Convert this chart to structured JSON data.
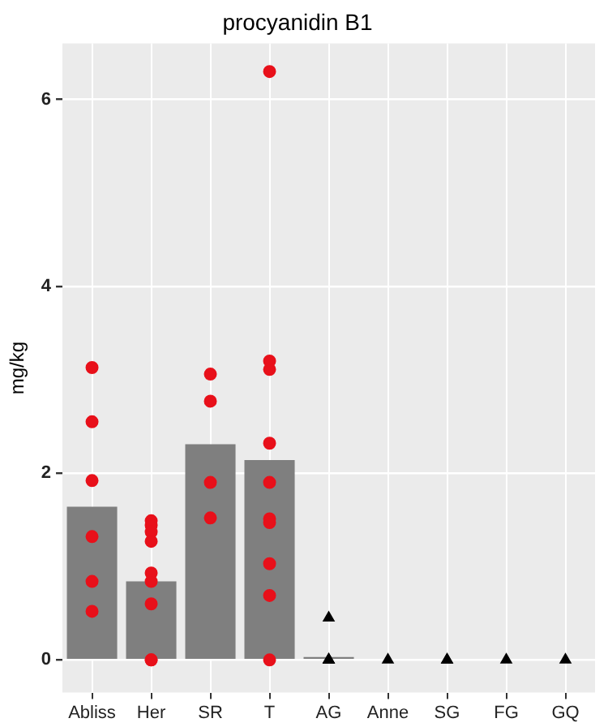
{
  "chart_data": {
    "type": "bar",
    "title": "procyanidin B1",
    "ylabel": "mg/kg",
    "categories": [
      "Abliss",
      "Her",
      "SR",
      "T",
      "AG",
      "Anne",
      "SG",
      "FG",
      "GQ"
    ],
    "ylim": [
      -0.35,
      6.6
    ],
    "yticks": [
      0,
      2,
      4,
      6
    ],
    "grid": true,
    "legend": false,
    "series": [
      {
        "color": "#7f7f7f",
        "values": [
          1.64,
          0.84,
          2.31,
          2.14,
          0.03,
          0,
          0,
          0,
          0
        ]
      },
      {
        "type": "scatter",
        "color": "#e8101a",
        "marker": "circle",
        "x": [
          "Abliss",
          "Abliss",
          "Abliss",
          "Abliss",
          "Abliss",
          "Abliss",
          "Her",
          "Her",
          "Her",
          "Her",
          "Her",
          "Her",
          "Her",
          "Her",
          "Her",
          "SR",
          "SR",
          "SR",
          "SR",
          "T",
          "T",
          "T",
          "T",
          "T",
          "T",
          "T",
          "T",
          "T",
          "T"
        ],
        "values": [
          3.13,
          2.55,
          1.92,
          1.32,
          0.84,
          0.52,
          1.49,
          1.44,
          1.37,
          1.27,
          0.93,
          0.84,
          0.6,
          0,
          0,
          3.06,
          2.77,
          1.9,
          1.52,
          6.3,
          3.2,
          3.11,
          2.32,
          1.9,
          1.51,
          1.47,
          1.03,
          0.69,
          0
        ]
      },
      {
        "type": "scatter",
        "color": "#000000",
        "marker": "triangle",
        "x": [
          "AG",
          "AG",
          "AG",
          "AG",
          "Anne",
          "SG",
          "SG",
          "FG",
          "GQ"
        ],
        "values": [
          0.45,
          0,
          0,
          0,
          0,
          0,
          0,
          0,
          0
        ]
      }
    ]
  }
}
